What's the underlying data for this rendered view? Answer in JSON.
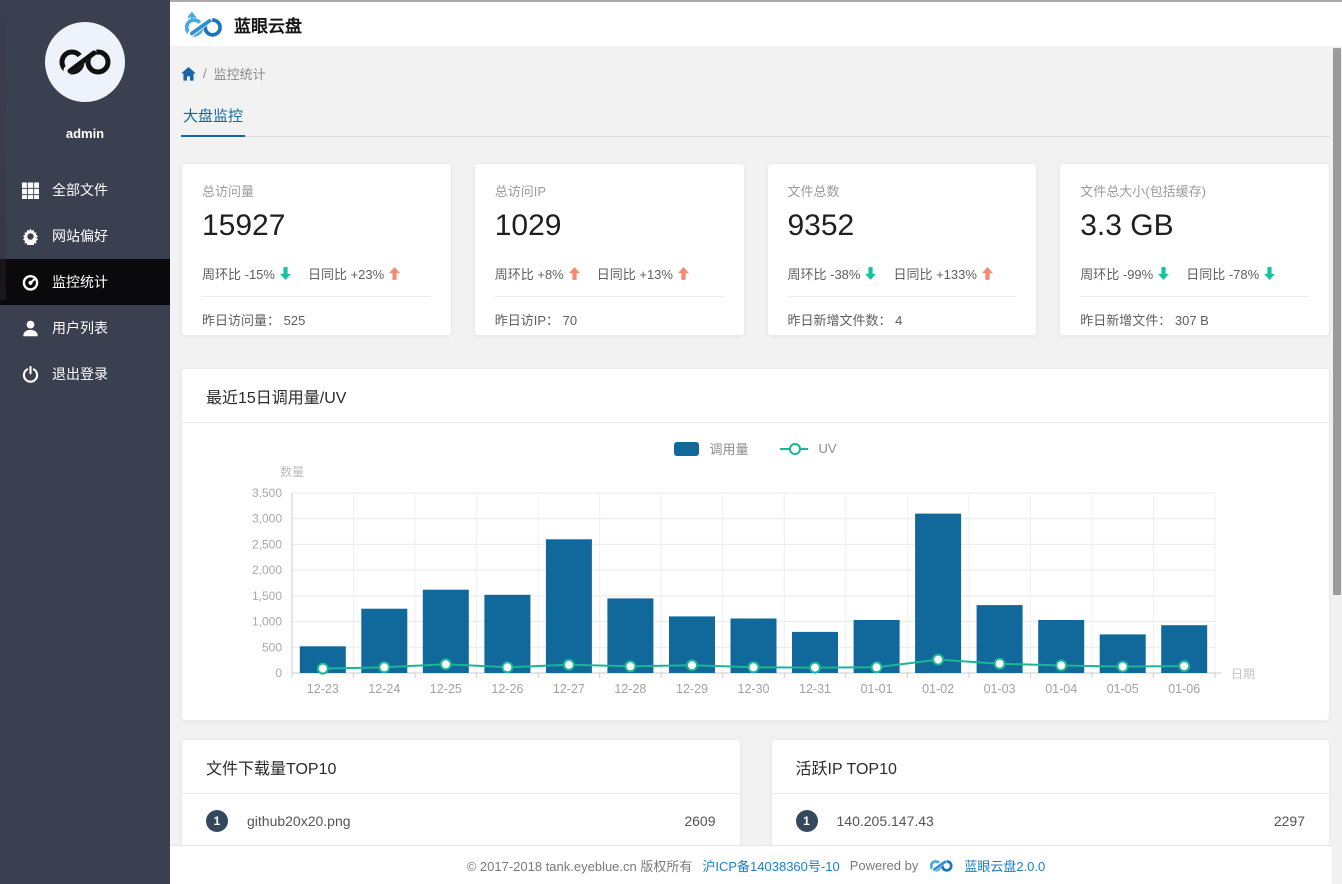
{
  "app": {
    "title": "蓝眼云盘"
  },
  "sidebar": {
    "username": "admin",
    "items": [
      {
        "key": "all-files",
        "icon": "grid-icon",
        "label": "全部文件",
        "active": false
      },
      {
        "key": "site-pref",
        "icon": "gear-icon",
        "label": "网站偏好",
        "active": false
      },
      {
        "key": "monitor",
        "icon": "dashboard-icon",
        "label": "监控统计",
        "active": true
      },
      {
        "key": "user-list",
        "icon": "user-icon",
        "label": "用户列表",
        "active": false
      },
      {
        "key": "logout",
        "icon": "power-icon",
        "label": "退出登录",
        "active": false
      }
    ]
  },
  "breadcrumb": {
    "separator": "/",
    "current": "监控统计"
  },
  "tabs": [
    {
      "label": "大盘监控",
      "active": true
    }
  ],
  "stat_cards": [
    {
      "label": "总访问量",
      "value": "15927",
      "week_label": "周环比",
      "week_value": "-15%",
      "week_dir": "down",
      "day_label": "日同比",
      "day_value": "+23%",
      "day_dir": "up",
      "footer_label": "昨日访问量：",
      "footer_value": "525"
    },
    {
      "label": "总访问IP",
      "value": "1029",
      "week_label": "周环比",
      "week_value": "+8%",
      "week_dir": "up",
      "day_label": "日同比",
      "day_value": "+13%",
      "day_dir": "up",
      "footer_label": "昨日访IP：",
      "footer_value": "70"
    },
    {
      "label": "文件总数",
      "value": "9352",
      "week_label": "周环比",
      "week_value": "-38%",
      "week_dir": "down",
      "day_label": "日同比",
      "day_value": "+133%",
      "day_dir": "up",
      "footer_label": "昨日新增文件数：",
      "footer_value": "4"
    },
    {
      "label": "文件总大小(包括缓存)",
      "value": "3.3 GB",
      "week_label": "周环比",
      "week_value": "-99%",
      "week_dir": "down",
      "day_label": "日同比",
      "day_value": "-78%",
      "day_dir": "down",
      "footer_label": "昨日新增文件：",
      "footer_value": "307 B"
    }
  ],
  "chart_panel": {
    "title": "最近15日调用量/UV"
  },
  "chart_data": {
    "type": "bar",
    "title": "最近15日调用量/UV",
    "categories": [
      "12-23",
      "12-24",
      "12-25",
      "12-26",
      "12-27",
      "12-28",
      "12-29",
      "12-30",
      "12-31",
      "01-01",
      "01-02",
      "01-03",
      "01-04",
      "01-05",
      "01-06"
    ],
    "series": [
      {
        "name": "调用量",
        "type": "bar",
        "color": "#11689b",
        "values": [
          520,
          1250,
          1620,
          1520,
          2600,
          1450,
          1100,
          1060,
          800,
          1030,
          3100,
          1320,
          1030,
          750,
          930
        ]
      },
      {
        "name": "UV",
        "type": "line",
        "color": "#19b794",
        "values": [
          85,
          110,
          170,
          110,
          160,
          130,
          150,
          110,
          105,
          110,
          260,
          180,
          145,
          125,
          135
        ]
      }
    ],
    "xlabel": "日期",
    "ylabel": "数量",
    "ylim": [
      0,
      3500
    ],
    "ytick_step": 500,
    "yticks": [
      "0",
      "500",
      "1,000",
      "1,500",
      "2,000",
      "2,500",
      "3,000",
      "3,500"
    ],
    "grid": true,
    "legend_position": "top"
  },
  "top_lists": [
    {
      "title": "文件下载量TOP10",
      "items": [
        {
          "rank": "1",
          "name": "github20x20.png",
          "value": "2609"
        }
      ]
    },
    {
      "title": "活跃IP TOP10",
      "items": [
        {
          "rank": "1",
          "name": "140.205.147.43",
          "value": "2297"
        }
      ]
    }
  ],
  "footer": {
    "copyright": "© 2017-2018 tank.eyeblue.cn 版权所有",
    "icp": "沪ICP备14038360号-10",
    "powered_by": "Powered by",
    "product_link": "蓝眼云盘2.0.0"
  },
  "colors": {
    "bar_blue": "#11689b",
    "uv_teal": "#19b794",
    "up_orange": "#f58a70",
    "down_teal": "#16c2a3",
    "accent_blue": "#1069a3",
    "sidebar_bg": "#3a4050",
    "active_item_bg": "#0a0a0c",
    "badge_bg": "#35495e",
    "link_blue": "#1a7fc8"
  }
}
